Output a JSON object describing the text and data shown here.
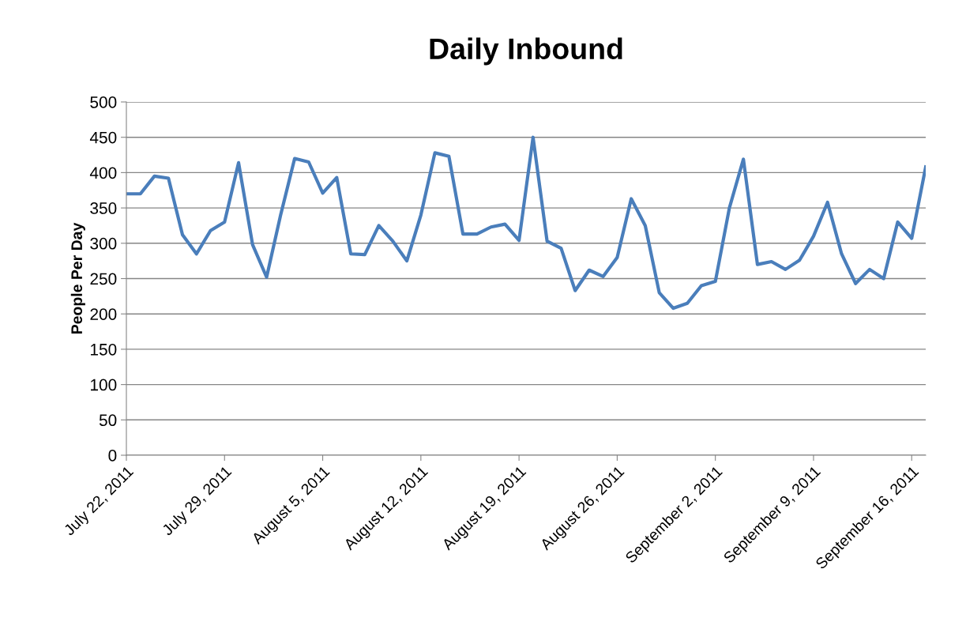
{
  "chart_data": {
    "type": "line",
    "title": "Daily Inbound",
    "ylabel": "People Per Day",
    "x": [
      "2011-07-22",
      "2011-07-23",
      "2011-07-24",
      "2011-07-25",
      "2011-07-26",
      "2011-07-27",
      "2011-07-28",
      "2011-07-29",
      "2011-07-30",
      "2011-07-31",
      "2011-08-01",
      "2011-08-02",
      "2011-08-03",
      "2011-08-04",
      "2011-08-05",
      "2011-08-06",
      "2011-08-07",
      "2011-08-08",
      "2011-08-09",
      "2011-08-10",
      "2011-08-11",
      "2011-08-12",
      "2011-08-13",
      "2011-08-14",
      "2011-08-15",
      "2011-08-16",
      "2011-08-17",
      "2011-08-18",
      "2011-08-19",
      "2011-08-20",
      "2011-08-21",
      "2011-08-22",
      "2011-08-23",
      "2011-08-24",
      "2011-08-25",
      "2011-08-26",
      "2011-08-27",
      "2011-08-28",
      "2011-08-29",
      "2011-08-30",
      "2011-08-31",
      "2011-09-01",
      "2011-09-02",
      "2011-09-03",
      "2011-09-04",
      "2011-09-05",
      "2011-09-06",
      "2011-09-07",
      "2011-09-08",
      "2011-09-09",
      "2011-09-10",
      "2011-09-11",
      "2011-09-12",
      "2011-09-13",
      "2011-09-14",
      "2011-09-15",
      "2011-09-16",
      "2011-09-17"
    ],
    "series": [
      {
        "color": "#4a7ebb",
        "values": [
          370,
          370,
          395,
          392,
          312,
          285,
          318,
          330,
          414,
          298,
          252,
          340,
          420,
          415,
          371,
          393,
          285,
          284,
          325,
          303,
          275,
          340,
          428,
          423,
          313,
          313,
          323,
          327,
          304,
          450,
          303,
          293,
          233,
          262,
          253,
          280,
          363,
          325,
          230,
          208,
          215,
          240,
          246,
          350,
          419,
          270,
          274,
          263,
          276,
          310,
          358,
          285,
          243,
          263,
          250,
          330,
          307,
          408
        ]
      }
    ],
    "xlim": [
      "2011-07-22",
      "2011-09-17"
    ],
    "xticks": [
      {
        "value": "2011-07-22",
        "label": "July 22, 2011"
      },
      {
        "value": "2011-07-29",
        "label": "July 29, 2011"
      },
      {
        "value": "2011-08-05",
        "label": "August 5, 2011"
      },
      {
        "value": "2011-08-12",
        "label": "August 12, 2011"
      },
      {
        "value": "2011-08-19",
        "label": "August 19, 2011"
      },
      {
        "value": "2011-08-26",
        "label": "August 26, 2011"
      },
      {
        "value": "2011-09-02",
        "label": "September 2, 2011"
      },
      {
        "value": "2011-09-09",
        "label": "September 9, 2011"
      },
      {
        "value": "2011-09-16",
        "label": "September 16, 2011"
      }
    ],
    "ylim": [
      0,
      500
    ],
    "yticks": [
      0,
      50,
      100,
      150,
      200,
      250,
      300,
      350,
      400,
      450,
      500
    ],
    "grid": "y",
    "legend": false,
    "marker": "none",
    "line_style": "solid"
  }
}
